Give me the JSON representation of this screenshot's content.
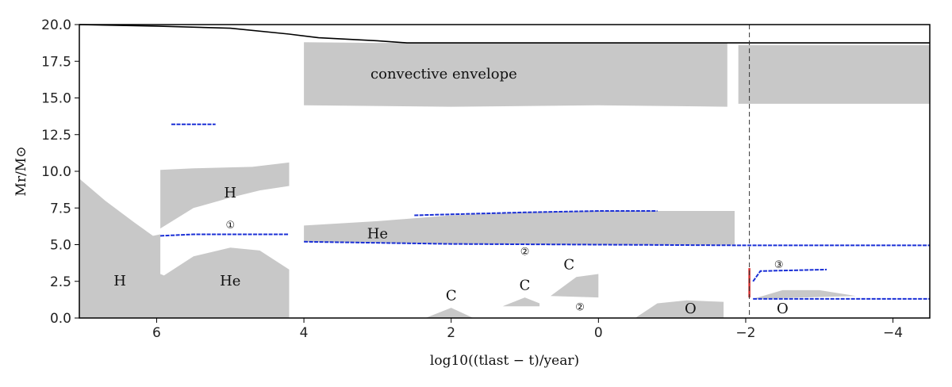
{
  "chart_data": {
    "type": "area",
    "xlabel": "log10((tlast − t)/year)",
    "ylabel": "Mr/M⊙",
    "xlim": [
      7.05,
      -4.5
    ],
    "ylim": [
      0,
      20
    ],
    "x_ticks": [
      6,
      4,
      2,
      0,
      -2,
      -4
    ],
    "y_ticks": [
      0.0,
      2.5,
      5.0,
      7.5,
      10.0,
      12.5,
      15.0,
      17.5,
      20.0
    ],
    "grid": false,
    "total_mass_line": [
      [
        7.05,
        20.0
      ],
      [
        6.0,
        19.9
      ],
      [
        5.0,
        19.75
      ],
      [
        4.2,
        19.35
      ],
      [
        3.8,
        19.1
      ],
      [
        3.0,
        18.9
      ],
      [
        2.6,
        18.75
      ],
      [
        1.0,
        18.75
      ],
      [
        -4.5,
        18.75
      ]
    ],
    "reference_line_x": -2.05,
    "regions": [
      {
        "name": "H core burning",
        "points": [
          [
            7.05,
            9.5
          ],
          [
            6.7,
            8.0
          ],
          [
            6.3,
            6.5
          ],
          [
            6.05,
            5.6
          ],
          [
            5.95,
            5.7
          ],
          [
            5.95,
            3.0
          ],
          [
            5.9,
            2.9
          ],
          [
            5.5,
            4.2
          ],
          [
            5.0,
            4.8
          ],
          [
            4.6,
            4.6
          ],
          [
            4.2,
            3.3
          ],
          [
            4.2,
            0
          ],
          [
            7.05,
            0
          ]
        ]
      },
      {
        "name": "H shell",
        "points": [
          [
            5.95,
            10.1
          ],
          [
            5.5,
            10.2
          ],
          [
            4.7,
            10.3
          ],
          [
            4.2,
            10.6
          ],
          [
            4.2,
            9.0
          ],
          [
            4.6,
            8.7
          ],
          [
            5.0,
            8.2
          ],
          [
            5.5,
            7.5
          ],
          [
            5.95,
            6.1
          ]
        ]
      },
      {
        "name": "He shell",
        "points": [
          [
            4.0,
            6.3
          ],
          [
            3.0,
            6.6
          ],
          [
            2.0,
            7.0
          ],
          [
            1.0,
            7.2
          ],
          [
            0.0,
            7.3
          ],
          [
            -1.0,
            7.3
          ],
          [
            -1.85,
            7.3
          ],
          [
            -1.85,
            5.0
          ],
          [
            0.0,
            5.0
          ],
          [
            2.0,
            5.05
          ],
          [
            4.0,
            5.2
          ]
        ]
      },
      {
        "name": "convective envelope",
        "points": [
          [
            4.0,
            18.8
          ],
          [
            3.0,
            18.75
          ],
          [
            2.0,
            18.75
          ],
          [
            1.0,
            18.75
          ],
          [
            0.0,
            18.75
          ],
          [
            -1.0,
            18.75
          ],
          [
            -1.75,
            18.75
          ],
          [
            -1.75,
            14.4
          ],
          [
            0.0,
            14.5
          ],
          [
            2.0,
            14.4
          ],
          [
            4.0,
            14.5
          ]
        ]
      },
      {
        "name": "late convective envelope",
        "points": [
          [
            -1.9,
            18.6
          ],
          [
            -3.0,
            18.6
          ],
          [
            -4.5,
            18.6
          ],
          [
            -4.5,
            14.6
          ],
          [
            -3.0,
            14.6
          ],
          [
            -1.9,
            14.6
          ]
        ]
      },
      {
        "name": "C burning 1",
        "points": [
          [
            2.35,
            0.0
          ],
          [
            2.0,
            0.7
          ],
          [
            1.7,
            0.0
          ]
        ]
      },
      {
        "name": "C burning 2",
        "points": [
          [
            1.3,
            0.8
          ],
          [
            1.0,
            1.4
          ],
          [
            0.8,
            1.0
          ],
          [
            0.8,
            0.8
          ]
        ]
      },
      {
        "name": "C burning 3",
        "points": [
          [
            0.65,
            1.5
          ],
          [
            0.3,
            2.8
          ],
          [
            0.0,
            3.0
          ],
          [
            0.0,
            1.4
          ]
        ]
      },
      {
        "name": "O burning",
        "points": [
          [
            -0.5,
            0.0
          ],
          [
            -0.8,
            1.0
          ],
          [
            -1.2,
            1.2
          ],
          [
            -1.7,
            1.1
          ],
          [
            -1.7,
            0.0
          ]
        ]
      },
      {
        "name": "O shell",
        "points": [
          [
            -2.1,
            1.3
          ],
          [
            -2.5,
            1.9
          ],
          [
            -3.0,
            1.9
          ],
          [
            -3.5,
            1.5
          ],
          [
            -2.1,
            1.3
          ]
        ]
      }
    ],
    "blue_lines": [
      {
        "name": "shell 1",
        "points": [
          [
            5.95,
            5.6
          ],
          [
            5.5,
            5.7
          ],
          [
            5.0,
            5.7
          ],
          [
            4.2,
            5.7
          ]
        ]
      },
      {
        "name": "He boundary",
        "points": [
          [
            4.0,
            5.2
          ],
          [
            2.0,
            5.05
          ],
          [
            0.0,
            5.0
          ],
          [
            -2.0,
            4.95
          ],
          [
            -4.5,
            4.95
          ]
        ]
      },
      {
        "name": "He upper",
        "points": [
          [
            2.5,
            7.0
          ],
          [
            1.0,
            7.2
          ],
          [
            0.0,
            7.3
          ],
          [
            -0.8,
            7.3
          ]
        ]
      },
      {
        "name": "upper dots",
        "points": [
          [
            5.8,
            13.2
          ],
          [
            5.3,
            13.2
          ],
          [
            5.2,
            13.2
          ]
        ]
      },
      {
        "name": "shell 3",
        "points": [
          [
            -2.1,
            2.5
          ],
          [
            -2.2,
            3.2
          ],
          [
            -3.1,
            3.3
          ]
        ]
      },
      {
        "name": "lower shell",
        "points": [
          [
            -2.1,
            1.3
          ],
          [
            -3.5,
            1.3
          ],
          [
            -4.5,
            1.3
          ]
        ]
      }
    ],
    "red_line": [
      [
        -2.05,
        3.4
      ],
      [
        -2.05,
        1.4
      ]
    ],
    "annotations": [
      {
        "text": "H",
        "x": 6.5,
        "y": 2.5
      },
      {
        "text": "He",
        "x": 5.0,
        "y": 2.5
      },
      {
        "text": "H",
        "x": 5.0,
        "y": 8.5
      },
      {
        "text": "①",
        "x": 5.0,
        "y": 6.3
      },
      {
        "text": "He",
        "x": 3.0,
        "y": 5.7
      },
      {
        "text": "②",
        "x": 1.0,
        "y": 4.5
      },
      {
        "text": "convective envelope",
        "x": 2.1,
        "y": 16.6
      },
      {
        "text": "C",
        "x": 2.0,
        "y": 1.5
      },
      {
        "text": "C",
        "x": 1.0,
        "y": 2.2
      },
      {
        "text": "C",
        "x": 0.4,
        "y": 3.6
      },
      {
        "text": "②",
        "x": 0.25,
        "y": 0.7
      },
      {
        "text": "O",
        "x": -1.25,
        "y": 0.6
      },
      {
        "text": "③",
        "x": -2.45,
        "y": 3.6
      },
      {
        "text": "O",
        "x": -2.5,
        "y": 0.6
      }
    ],
    "colors": {
      "region": "#c8c8c8",
      "shell": "#1a2fd6",
      "total": "#000000",
      "red": "#d62f2f",
      "axis": "#000000"
    }
  }
}
